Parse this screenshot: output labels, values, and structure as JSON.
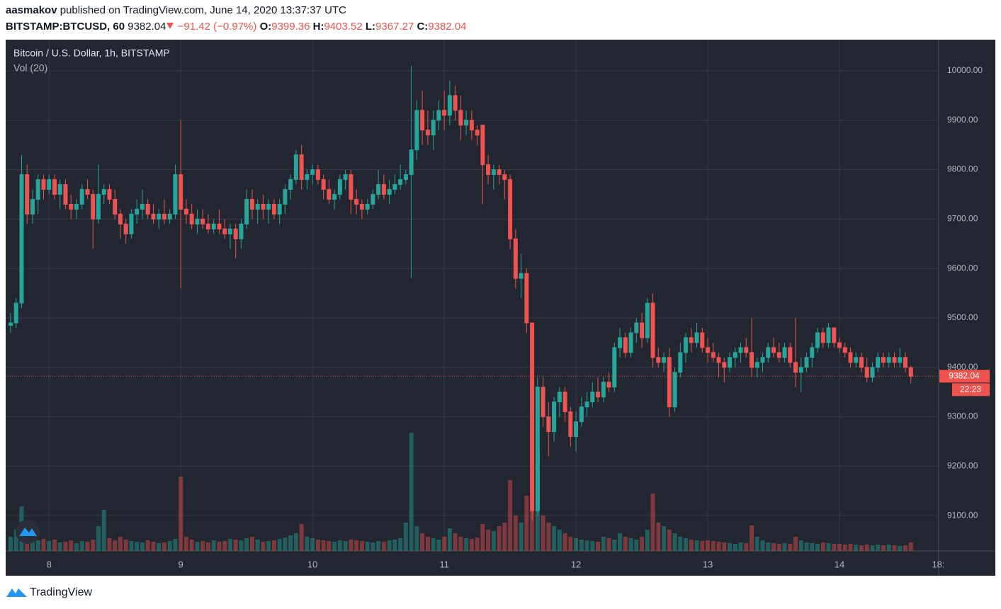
{
  "header": {
    "author": "aasmakov",
    "published": "published on TradingView.com, June 14, 2020 13:37:37 UTC",
    "symbol": "BITSTAMP:BTCUSD, 60",
    "change": "−91.42 (−0.97%)",
    "o_label": "O:",
    "h_label": "H:",
    "l_label": "L:",
    "c_label": "C:"
  },
  "footer": {
    "brand": "TradingView"
  },
  "chart_data": {
    "type": "candlestick",
    "title": "Bitcoin / U.S. Dollar, 1h, BITSTAMP",
    "indicator": "Vol (20)",
    "countdown": "22:23",
    "up_color": "#26a69a",
    "down_color": "#ef5350",
    "grid": true,
    "x": [
      "2020-06-07T17:00",
      "2020-06-07T18:00",
      "2020-06-07T19:00",
      "2020-06-07T20:00",
      "2020-06-07T21:00",
      "2020-06-07T22:00",
      "2020-06-07T23:00",
      "2020-06-08T00:00",
      "2020-06-08T01:00",
      "2020-06-08T02:00",
      "2020-06-08T03:00",
      "2020-06-08T04:00",
      "2020-06-08T05:00",
      "2020-06-08T06:00",
      "2020-06-08T07:00",
      "2020-06-08T08:00",
      "2020-06-08T09:00",
      "2020-06-08T10:00",
      "2020-06-08T11:00",
      "2020-06-08T12:00",
      "2020-06-08T13:00",
      "2020-06-08T14:00",
      "2020-06-08T15:00",
      "2020-06-08T16:00",
      "2020-06-08T17:00",
      "2020-06-08T18:00",
      "2020-06-08T19:00",
      "2020-06-08T20:00",
      "2020-06-08T21:00",
      "2020-06-08T22:00",
      "2020-06-08T23:00",
      "2020-06-09T00:00",
      "2020-06-09T01:00",
      "2020-06-09T02:00",
      "2020-06-09T03:00",
      "2020-06-09T04:00",
      "2020-06-09T05:00",
      "2020-06-09T06:00",
      "2020-06-09T07:00",
      "2020-06-09T08:00",
      "2020-06-09T09:00",
      "2020-06-09T10:00",
      "2020-06-09T11:00",
      "2020-06-09T12:00",
      "2020-06-09T13:00",
      "2020-06-09T14:00",
      "2020-06-09T15:00",
      "2020-06-09T16:00",
      "2020-06-09T17:00",
      "2020-06-09T18:00",
      "2020-06-09T19:00",
      "2020-06-09T20:00",
      "2020-06-09T21:00",
      "2020-06-09T22:00",
      "2020-06-09T23:00",
      "2020-06-10T00:00",
      "2020-06-10T01:00",
      "2020-06-10T02:00",
      "2020-06-10T03:00",
      "2020-06-10T04:00",
      "2020-06-10T05:00",
      "2020-06-10T06:00",
      "2020-06-10T07:00",
      "2020-06-10T08:00",
      "2020-06-10T09:00",
      "2020-06-10T10:00",
      "2020-06-10T11:00",
      "2020-06-10T12:00",
      "2020-06-10T13:00",
      "2020-06-10T14:00",
      "2020-06-10T15:00",
      "2020-06-10T16:00",
      "2020-06-10T17:00",
      "2020-06-10T18:00",
      "2020-06-10T19:00",
      "2020-06-10T20:00",
      "2020-06-10T21:00",
      "2020-06-10T22:00",
      "2020-06-10T23:00",
      "2020-06-11T00:00",
      "2020-06-11T01:00",
      "2020-06-11T02:00",
      "2020-06-11T03:00",
      "2020-06-11T04:00",
      "2020-06-11T05:00",
      "2020-06-11T06:00",
      "2020-06-11T07:00",
      "2020-06-11T08:00",
      "2020-06-11T09:00",
      "2020-06-11T10:00",
      "2020-06-11T11:00",
      "2020-06-11T12:00",
      "2020-06-11T13:00",
      "2020-06-11T14:00",
      "2020-06-11T15:00",
      "2020-06-11T16:00",
      "2020-06-11T17:00",
      "2020-06-11T18:00",
      "2020-06-11T19:00",
      "2020-06-11T20:00",
      "2020-06-11T21:00",
      "2020-06-11T22:00",
      "2020-06-11T23:00",
      "2020-06-12T00:00",
      "2020-06-12T01:00",
      "2020-06-12T02:00",
      "2020-06-12T03:00",
      "2020-06-12T04:00",
      "2020-06-12T05:00",
      "2020-06-12T06:00",
      "2020-06-12T07:00",
      "2020-06-12T08:00",
      "2020-06-12T09:00",
      "2020-06-12T10:00",
      "2020-06-12T11:00",
      "2020-06-12T12:00",
      "2020-06-12T13:00",
      "2020-06-12T14:00",
      "2020-06-12T15:00",
      "2020-06-12T16:00",
      "2020-06-12T17:00",
      "2020-06-12T18:00",
      "2020-06-12T19:00",
      "2020-06-12T20:00",
      "2020-06-12T21:00",
      "2020-06-12T22:00",
      "2020-06-12T23:00",
      "2020-06-13T00:00",
      "2020-06-13T01:00",
      "2020-06-13T02:00",
      "2020-06-13T03:00",
      "2020-06-13T04:00",
      "2020-06-13T05:00",
      "2020-06-13T06:00",
      "2020-06-13T07:00",
      "2020-06-13T08:00",
      "2020-06-13T09:00",
      "2020-06-13T10:00",
      "2020-06-13T11:00",
      "2020-06-13T12:00",
      "2020-06-13T13:00",
      "2020-06-13T14:00",
      "2020-06-13T15:00",
      "2020-06-13T16:00",
      "2020-06-13T17:00",
      "2020-06-13T18:00",
      "2020-06-13T19:00",
      "2020-06-13T20:00",
      "2020-06-13T21:00",
      "2020-06-13T22:00",
      "2020-06-13T23:00",
      "2020-06-14T00:00",
      "2020-06-14T01:00",
      "2020-06-14T02:00",
      "2020-06-14T03:00",
      "2020-06-14T04:00",
      "2020-06-14T05:00",
      "2020-06-14T06:00",
      "2020-06-14T07:00",
      "2020-06-14T08:00",
      "2020-06-14T09:00",
      "2020-06-14T10:00",
      "2020-06-14T11:00",
      "2020-06-14T12:00",
      "2020-06-14T13:00"
    ],
    "open": [
      9485,
      9490,
      9530,
      9790,
      9710,
      9740,
      9780,
      9760,
      9780,
      9750,
      9770,
      9730,
      9720,
      9730,
      9760,
      9750,
      9700,
      9750,
      9760,
      9740,
      9710,
      9690,
      9670,
      9710,
      9720,
      9730,
      9710,
      9700,
      9710,
      9700,
      9710,
      9790,
      9720,
      9710,
      9690,
      9700,
      9690,
      9680,
      9690,
      9680,
      9670,
      9680,
      9660,
      9690,
      9740,
      9720,
      9730,
      9720,
      9730,
      9710,
      9730,
      9760,
      9780,
      9830,
      9780,
      9790,
      9800,
      9780,
      9760,
      9740,
      9750,
      9780,
      9790,
      9740,
      9730,
      9720,
      9730,
      9750,
      9770,
      9750,
      9760,
      9770,
      9780,
      9790,
      9840,
      9920,
      9880,
      9870,
      9900,
      9920,
      9910,
      9950,
      9920,
      9890,
      9900,
      9880,
      9890,
      9810,
      9790,
      9800,
      9790,
      9780,
      9660,
      9580,
      9590,
      9490,
      9110,
      9360,
      9300,
      9270,
      9330,
      9350,
      9310,
      9260,
      9290,
      9320,
      9330,
      9350,
      9340,
      9370,
      9360,
      9440,
      9460,
      9430,
      9470,
      9490,
      9460,
      9530,
      9420,
      9410,
      9420,
      9320,
      9390,
      9430,
      9460,
      9450,
      9470,
      9440,
      9430,
      9420,
      9410,
      9400,
      9420,
      9430,
      9440,
      9430,
      9400,
      9410,
      9420,
      9440,
      9430,
      9420,
      9440,
      9410,
      9390,
      9400,
      9420,
      9440,
      9470,
      9450,
      9480,
      9450,
      9440,
      9430,
      9410,
      9420,
      9400,
      9380,
      9400,
      9420,
      9410,
      9420,
      9410,
      9420,
      9399.36
    ],
    "high": [
      9510,
      9540,
      9830,
      9810,
      9760,
      9790,
      9790,
      9790,
      9790,
      9780,
      9780,
      9750,
      9740,
      9770,
      9780,
      9760,
      9810,
      9770,
      9770,
      9760,
      9720,
      9700,
      9720,
      9740,
      9760,
      9740,
      9730,
      9720,
      9740,
      9720,
      9810,
      9900,
      9740,
      9730,
      9720,
      9720,
      9710,
      9700,
      9720,
      9700,
      9690,
      9690,
      9700,
      9760,
      9760,
      9740,
      9750,
      9740,
      9740,
      9740,
      9770,
      9790,
      9840,
      9850,
      9800,
      9810,
      9810,
      9790,
      9780,
      9760,
      9790,
      9800,
      9800,
      9760,
      9740,
      9740,
      9760,
      9800,
      9790,
      9780,
      9790,
      9810,
      9800,
      10010,
      9940,
      9960,
      9920,
      9920,
      9940,
      9960,
      9980,
      9970,
      9950,
      9920,
      9920,
      9890,
      9890,
      9830,
      9810,
      9810,
      9800,
      9790,
      9680,
      9630,
      9600,
      9490,
      9380,
      9380,
      9330,
      9340,
      9360,
      9360,
      9320,
      9310,
      9340,
      9350,
      9370,
      9380,
      9380,
      9390,
      9450,
      9480,
      9470,
      9480,
      9500,
      9510,
      9540,
      9550,
      9440,
      9430,
      9440,
      9400,
      9450,
      9470,
      9480,
      9490,
      9480,
      9460,
      9450,
      9430,
      9420,
      9430,
      9440,
      9450,
      9460,
      9500,
      9420,
      9430,
      9450,
      9460,
      9450,
      9450,
      9450,
      9500,
      9420,
      9430,
      9450,
      9480,
      9480,
      9490,
      9480,
      9460,
      9450,
      9440,
      9430,
      9430,
      9420,
      9410,
      9430,
      9430,
      9430,
      9430,
      9440,
      9430,
      9403.52
    ],
    "low": [
      9470,
      9480,
      9520,
      9690,
      9690,
      9710,
      9740,
      9750,
      9740,
      9720,
      9720,
      9700,
      9700,
      9720,
      9740,
      9640,
      9690,
      9730,
      9730,
      9700,
      9660,
      9650,
      9660,
      9690,
      9700,
      9700,
      9690,
      9680,
      9690,
      9690,
      9700,
      9560,
      9690,
      9680,
      9670,
      9680,
      9670,
      9670,
      9670,
      9660,
      9640,
      9620,
      9640,
      9680,
      9700,
      9690,
      9700,
      9690,
      9700,
      9690,
      9710,
      9740,
      9770,
      9760,
      9760,
      9770,
      9770,
      9740,
      9730,
      9720,
      9740,
      9760,
      9710,
      9710,
      9700,
      9710,
      9720,
      9740,
      9740,
      9730,
      9750,
      9760,
      9770,
      9580,
      9820,
      9850,
      9850,
      9840,
      9880,
      9880,
      9890,
      9900,
      9860,
      9870,
      9860,
      9850,
      9730,
      9770,
      9760,
      9770,
      9740,
      9640,
      9560,
      9540,
      9470,
      9090,
      9100,
      9280,
      9220,
      9250,
      9300,
      9290,
      9240,
      9230,
      9280,
      9300,
      9320,
      9330,
      9330,
      9350,
      9350,
      9420,
      9420,
      9420,
      9450,
      9440,
      9450,
      9400,
      9400,
      9390,
      9300,
      9310,
      9380,
      9410,
      9430,
      9440,
      9430,
      9410,
      9410,
      9380,
      9370,
      9390,
      9400,
      9410,
      9420,
      9380,
      9380,
      9390,
      9410,
      9420,
      9410,
      9410,
      9400,
      9360,
      9350,
      9390,
      9400,
      9430,
      9440,
      9440,
      9440,
      9430,
      9420,
      9400,
      9400,
      9390,
      9370,
      9370,
      9390,
      9400,
      9400,
      9400,
      9400,
      9390,
      9367.27
    ],
    "close": [
      9490,
      9530,
      9790,
      9710,
      9740,
      9780,
      9760,
      9780,
      9750,
      9770,
      9730,
      9720,
      9730,
      9760,
      9750,
      9700,
      9750,
      9760,
      9740,
      9710,
      9690,
      9670,
      9710,
      9720,
      9730,
      9710,
      9700,
      9710,
      9700,
      9710,
      9790,
      9720,
      9710,
      9690,
      9700,
      9690,
      9680,
      9690,
      9680,
      9670,
      9680,
      9660,
      9690,
      9740,
      9720,
      9730,
      9720,
      9730,
      9710,
      9730,
      9760,
      9780,
      9830,
      9780,
      9790,
      9800,
      9780,
      9760,
      9740,
      9750,
      9780,
      9790,
      9740,
      9730,
      9720,
      9730,
      9750,
      9770,
      9750,
      9760,
      9770,
      9780,
      9790,
      9840,
      9920,
      9880,
      9870,
      9900,
      9920,
      9910,
      9950,
      9920,
      9890,
      9900,
      9880,
      9870,
      9810,
      9790,
      9800,
      9790,
      9780,
      9660,
      9580,
      9590,
      9490,
      9110,
      9360,
      9300,
      9270,
      9330,
      9350,
      9310,
      9260,
      9290,
      9320,
      9330,
      9350,
      9340,
      9370,
      9360,
      9440,
      9460,
      9430,
      9470,
      9490,
      9460,
      9530,
      9420,
      9410,
      9420,
      9320,
      9390,
      9430,
      9460,
      9450,
      9470,
      9440,
      9430,
      9420,
      9410,
      9400,
      9420,
      9430,
      9440,
      9430,
      9400,
      9410,
      9420,
      9440,
      9430,
      9420,
      9440,
      9410,
      9390,
      9400,
      9420,
      9440,
      9470,
      9450,
      9480,
      9450,
      9440,
      9430,
      9410,
      9420,
      9400,
      9380,
      9400,
      9420,
      9410,
      9420,
      9410,
      9420,
      9400,
      9382.04
    ],
    "volume": [
      200,
      300,
      630,
      250,
      180,
      150,
      170,
      140,
      160,
      120,
      130,
      150,
      110,
      140,
      130,
      160,
      350,
      580,
      180,
      150,
      200,
      160,
      140,
      130,
      120,
      150,
      130,
      110,
      120,
      140,
      170,
      1050,
      200,
      160,
      130,
      140,
      120,
      150,
      130,
      140,
      170,
      160,
      150,
      180,
      200,
      160,
      130,
      140,
      150,
      170,
      190,
      220,
      250,
      380,
      200,
      180,
      160,
      150,
      140,
      130,
      150,
      140,
      160,
      150,
      140,
      130,
      120,
      140,
      130,
      150,
      160,
      180,
      400,
      1670,
      350,
      250,
      200,
      180,
      160,
      200,
      320,
      250,
      200,
      180,
      170,
      190,
      380,
      300,
      280,
      350,
      400,
      1000,
      500,
      400,
      780,
      600,
      1430,
      500,
      400,
      350,
      300,
      250,
      200,
      180,
      160,
      150,
      140,
      130,
      200,
      180,
      160,
      250,
      200,
      180,
      160,
      200,
      300,
      810,
      400,
      350,
      300,
      250,
      200,
      180,
      160,
      150,
      140,
      150,
      140,
      130,
      120,
      110,
      100,
      120,
      110,
      360,
      200,
      150,
      120,
      110,
      100,
      110,
      100,
      200,
      150,
      120,
      110,
      100,
      120,
      110,
      100,
      100,
      90,
      100,
      90,
      80,
      90,
      80,
      90,
      80,
      90,
      80,
      70,
      80,
      120
    ],
    "ylim": [
      9028.6,
      10063
    ],
    "yticks": [
      {
        "value": 9100,
        "label": "9100.00"
      },
      {
        "value": 9200,
        "label": "9200.00"
      },
      {
        "value": 9300,
        "label": "9300.00"
      },
      {
        "value": 9400,
        "label": "9400.00"
      },
      {
        "value": 9500,
        "label": "9500.00"
      },
      {
        "value": 9600,
        "label": "9600.00"
      },
      {
        "value": 9700,
        "label": "9700.00"
      },
      {
        "value": 9800,
        "label": "9800.00"
      },
      {
        "value": 9900,
        "label": "9900.00"
      },
      {
        "value": 10000,
        "label": "10000.00"
      }
    ],
    "xlim": [
      "2020-06-07T16:06",
      "2020-06-14T18:04"
    ],
    "xticks": [
      {
        "value": "2020-06-08T00:00",
        "label": "8"
      },
      {
        "value": "2020-06-09T00:00",
        "label": "9"
      },
      {
        "value": "2020-06-10T00:00",
        "label": "10"
      },
      {
        "value": "2020-06-11T00:00",
        "label": "11"
      },
      {
        "value": "2020-06-12T00:00",
        "label": "12"
      },
      {
        "value": "2020-06-13T00:00",
        "label": "13"
      },
      {
        "value": "2020-06-14T00:00",
        "label": "14"
      },
      {
        "value": "2020-06-14T18:00",
        "label": "18:"
      }
    ]
  }
}
